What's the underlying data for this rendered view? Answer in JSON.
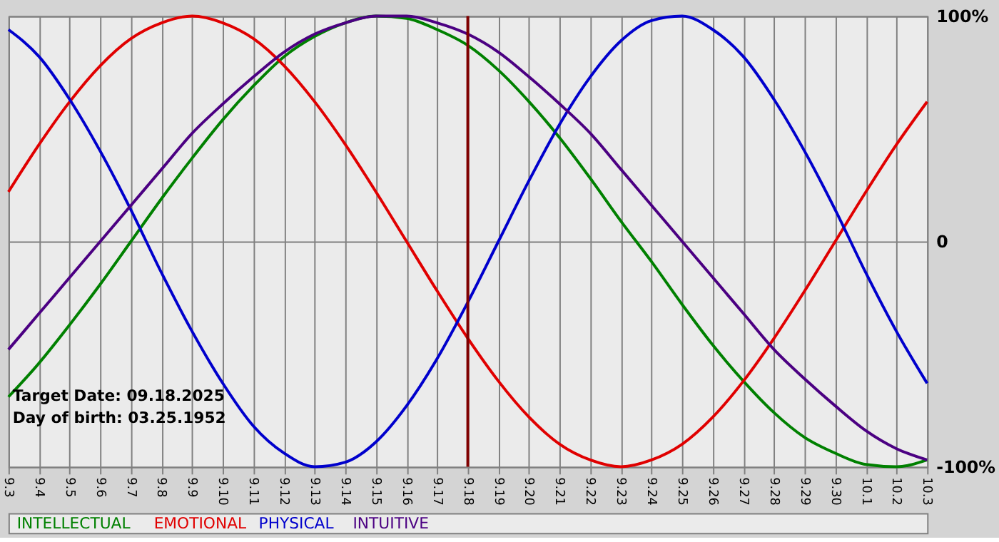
{
  "chart_data": {
    "type": "line",
    "categories": [
      "9.3",
      "9.4",
      "9.5",
      "9.6",
      "9.7",
      "9.8",
      "9.9",
      "9.10",
      "9.11",
      "9.12",
      "9.13",
      "9.14",
      "9.15",
      "9.16",
      "9.17",
      "9.18",
      "9.19",
      "9.20",
      "9.21",
      "9.22",
      "9.23",
      "9.24",
      "9.25",
      "9.26",
      "9.27",
      "9.28",
      "9.29",
      "9.30",
      "10.1",
      "10.2",
      "10.3"
    ],
    "series": [
      {
        "name": "INTELLECTUAL",
        "color": "#008000",
        "values": [
          -69,
          -54,
          -37,
          -19,
          0,
          19,
          37,
          54,
          69,
          82,
          91,
          97,
          100,
          99,
          94,
          87,
          76,
          62,
          46,
          28,
          9,
          -9,
          -28,
          -46,
          -62,
          -76,
          -87,
          -94,
          -99,
          -100,
          -97
        ]
      },
      {
        "name": "EMOTIONAL",
        "color": "#e00000",
        "values": [
          22,
          43,
          62,
          78,
          90,
          97,
          100,
          97,
          90,
          78,
          62,
          43,
          22,
          0,
          -22,
          -43,
          -62,
          -78,
          -90,
          -97,
          -100,
          -97,
          -90,
          -78,
          -62,
          -43,
          -22,
          0,
          22,
          43,
          62
        ]
      },
      {
        "name": "PHYSICAL",
        "color": "#0000cc",
        "values": [
          94,
          82,
          63,
          40,
          14,
          -14,
          -40,
          -63,
          -82,
          -94,
          -100,
          -98,
          -89,
          -73,
          -52,
          -27,
          0,
          27,
          52,
          73,
          89,
          98,
          100,
          94,
          82,
          63,
          40,
          14,
          -14,
          -40,
          -63
        ]
      },
      {
        "name": "INTUITIVE",
        "color": "#4b0082",
        "values": [
          -48,
          -32,
          -16,
          0,
          16,
          32,
          48,
          61,
          73,
          84,
          92,
          97,
          100,
          100,
          97,
          92,
          84,
          73,
          61,
          48,
          32,
          16,
          0,
          -16,
          -32,
          -48,
          -61,
          -73,
          -84,
          -92,
          -97
        ]
      }
    ],
    "ylim": [
      -100,
      100
    ],
    "yticks": [
      {
        "value": -100,
        "label": "-100%"
      },
      0,
      {
        "value": 100,
        "label": "100%"
      }
    ],
    "grid": true,
    "legend": "bottom left",
    "line_style": "solid",
    "marker": "none",
    "ref_lines": [
      {
        "axis": "x",
        "value": "9.18",
        "color": "#800000"
      }
    ],
    "annotations": [
      "Target Date: 09.18.2025",
      "Day of birth: 03.25.1952"
    ]
  }
}
